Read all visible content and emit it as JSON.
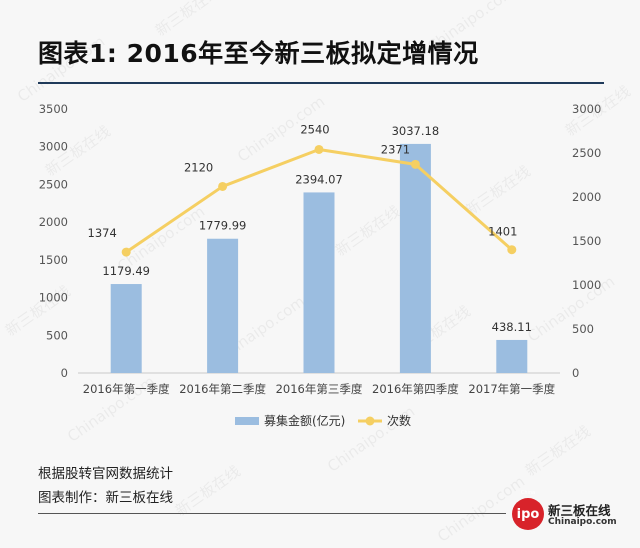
{
  "header": {
    "title": "图表1: 2016年至今新三板拟定增情况"
  },
  "footer": {
    "source": "根据股转官网数据统计",
    "producer": "图表制作：新三板在线"
  },
  "logo": {
    "badge_text": "ipo",
    "badge_small": "China",
    "name_cn": "新三板在线",
    "name_en": "Chinaipo.com"
  },
  "watermark": {
    "cn": "新三板在线",
    "en": "Chinaipo.com"
  },
  "colors": {
    "bar": "#9bbde0",
    "line": "#f5cf62",
    "title_rule": "#1f3a5a"
  },
  "chart_data": {
    "type": "bar+line",
    "categories": [
      "2016年第一季度",
      "2016年第二季度",
      "2016年第三季度",
      "2016年第四季度",
      "2017年第一季度"
    ],
    "series": [
      {
        "name": "募集金额(亿元)",
        "type": "bar",
        "axis": "left",
        "values": [
          1179.49,
          1779.99,
          2394.07,
          3037.18,
          438.11
        ],
        "labels": [
          "1179.49",
          "1779.99",
          "2394.07",
          "3037.18",
          "438.11"
        ]
      },
      {
        "name": "次数",
        "type": "line",
        "axis": "right",
        "values": [
          1374,
          2120,
          2540,
          2371,
          1401
        ],
        "labels": [
          "1374",
          "2120",
          "2540",
          "2371",
          "1401"
        ]
      }
    ],
    "y_left": {
      "min": 0,
      "max": 3500,
      "ticks": [
        "0",
        "500",
        "1000",
        "1500",
        "2000",
        "2500",
        "3000",
        "3500"
      ]
    },
    "y_right": {
      "min": 0,
      "max": 3000,
      "ticks": [
        "0",
        "500",
        "1000",
        "1500",
        "2000",
        "2500",
        "3000"
      ]
    },
    "legend_position": "bottom",
    "grid": false
  }
}
